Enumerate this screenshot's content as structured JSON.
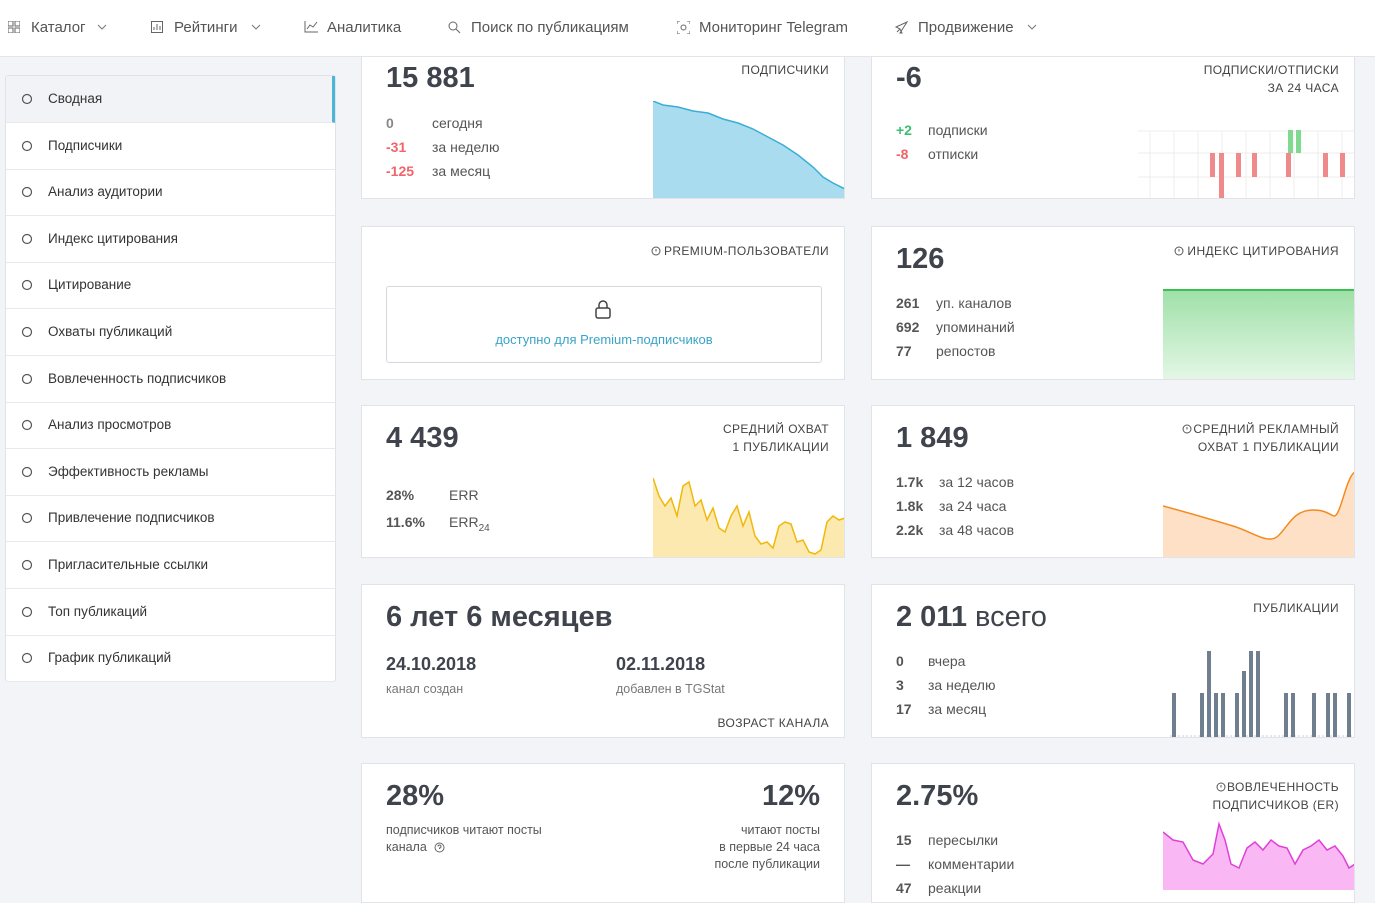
{
  "nav": {
    "items": [
      "Каталог",
      "Рейтинги",
      "Аналитика",
      "Поиск по публикациям",
      "Мониторинг Telegram",
      "Продвижение"
    ]
  },
  "sidebar": {
    "items": [
      "Сводная",
      "Подписчики",
      "Анализ аудитории",
      "Индекс цитирования",
      "Цитирование",
      "Охваты публикаций",
      "Вовлеченность подписчиков",
      "Анализ просмотров",
      "Эффективность рекламы",
      "Привлечение подписчиков",
      "Пригласительные ссылки",
      "Топ публикаций",
      "График публикаций"
    ]
  },
  "cards": {
    "subscribers": {
      "value": "15 881",
      "label": "ПОДПИСЧИКИ",
      "rows": [
        {
          "num": "0",
          "text": "сегодня"
        },
        {
          "num": "-31",
          "text": "за неделю"
        },
        {
          "num": "-125",
          "text": "за месяц"
        }
      ]
    },
    "subs_unsubs": {
      "value": "-6",
      "label": [
        "ПОДПИСКИ/ОТПИСКИ",
        "ЗА 24 ЧАСА"
      ],
      "rows": [
        {
          "num": "+2",
          "text": "подписки"
        },
        {
          "num": "-8",
          "text": "отписки"
        }
      ]
    },
    "premium": {
      "label": "PREMIUM-ПОЛЬЗОВАТЕЛИ",
      "locked": "доступно для Premium-подписчиков"
    },
    "citation": {
      "value": "126",
      "label": "ИНДЕКС ЦИТИРОВАНИЯ",
      "rows": [
        {
          "num": "261",
          "text": "уп. каналов"
        },
        {
          "num": "692",
          "text": "упоминаний"
        },
        {
          "num": "77",
          "text": "репостов"
        }
      ]
    },
    "reach": {
      "value": "4 439",
      "label": [
        "СРЕДНИЙ ОХВАТ",
        "1 ПУБЛИКАЦИИ"
      ],
      "rows": [
        {
          "num": "28%",
          "text": "ERR"
        },
        {
          "num": "11.6%",
          "text": "ERR",
          "sub": "24"
        }
      ]
    },
    "ad_reach": {
      "value": "1 849",
      "label": [
        "СРЕДНИЙ РЕКЛАМНЫЙ",
        "ОХВАТ 1 ПУБЛИКАЦИИ"
      ],
      "rows": [
        {
          "num": "1.7k",
          "text": "за 12 часов"
        },
        {
          "num": "1.8k",
          "text": "за 24 часа"
        },
        {
          "num": "2.2k",
          "text": "за 48 часов"
        }
      ]
    },
    "age": {
      "value": "6 лет 6 месяцев",
      "created": {
        "date": "24.10.2018",
        "text": "канал создан"
      },
      "added": {
        "date": "02.11.2018",
        "text": "добавлен в TGStat"
      },
      "label": "ВОЗРАСТ КАНАЛА"
    },
    "posts": {
      "value": "2 011",
      "unit": "всего",
      "label": "ПУБЛИКАЦИИ",
      "rows": [
        {
          "num": "0",
          "text": "вчера"
        },
        {
          "num": "3",
          "text": "за неделю"
        },
        {
          "num": "17",
          "text": "за месяц"
        }
      ]
    },
    "readers": {
      "left": {
        "value": "28%",
        "lines": [
          "подписчиков читают посты",
          "канала"
        ]
      },
      "right": {
        "value": "12%",
        "lines": [
          "читают посты",
          "в первые 24 часа",
          "после публикации"
        ]
      }
    },
    "er": {
      "value": "2.75%",
      "label": [
        "ВОВЛЕЧЕННОСТЬ",
        "ПОДПИСЧИКОВ (ER)"
      ],
      "rows": [
        {
          "num": "15",
          "text": "пересылки"
        },
        {
          "num": "—",
          "text": "комментарии"
        },
        {
          "num": "47",
          "text": "реакции"
        }
      ]
    }
  }
}
